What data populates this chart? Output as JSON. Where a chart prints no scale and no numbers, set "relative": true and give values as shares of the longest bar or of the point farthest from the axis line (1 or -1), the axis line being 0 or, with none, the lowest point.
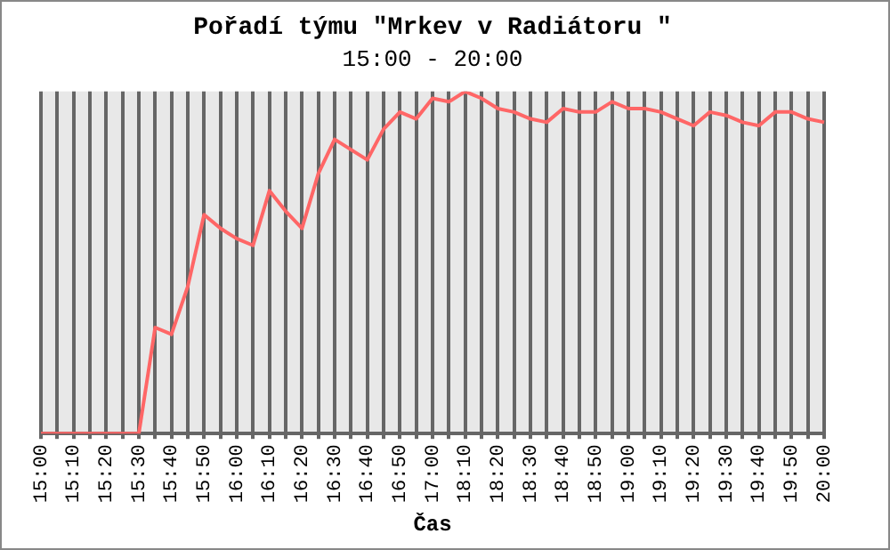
{
  "chart_data": {
    "type": "line",
    "title": "Pořadí týmu \"Mrkev v Radiátoru \"",
    "subtitle": "15:00 - 20:00",
    "xlabel": "Čas",
    "relative": true,
    "grid": "x",
    "legend": false,
    "marker": "none",
    "line_style": "solid",
    "categories": [
      "15:00",
      null,
      "15:10",
      null,
      "15:20",
      null,
      "15:30",
      null,
      "15:40",
      null,
      "15:50",
      null,
      "16:00",
      null,
      "16:10",
      null,
      "16:20",
      null,
      "16:30",
      null,
      "16:40",
      null,
      "16:50",
      null,
      "17:00",
      null,
      "18:10",
      null,
      "18:20",
      null,
      "18:30",
      null,
      "18:40",
      null,
      "18:50",
      null,
      "19:00",
      null,
      "19:10",
      null,
      "19:20",
      null,
      "19:30",
      null,
      "19:40",
      null,
      "19:50",
      null,
      "20:00"
    ],
    "series": [
      {
        "color": "#ff6666",
        "values": [
          0,
          0,
          0,
          0,
          0,
          0,
          0,
          0.31,
          0.29,
          0.43,
          0.64,
          0.6,
          0.57,
          0.55,
          0.71,
          0.65,
          0.6,
          0.76,
          0.86,
          0.83,
          0.8,
          0.89,
          0.94,
          0.92,
          0.98,
          0.97,
          1,
          0.98,
          0.95,
          0.94,
          0.92,
          0.91,
          0.95,
          0.94,
          0.94,
          0.97,
          0.95,
          0.95,
          0.94,
          0.92,
          0.9,
          0.94,
          0.93,
          0.91,
          0.9,
          0.94,
          0.94,
          0.92,
          0.91
        ]
      }
    ]
  }
}
